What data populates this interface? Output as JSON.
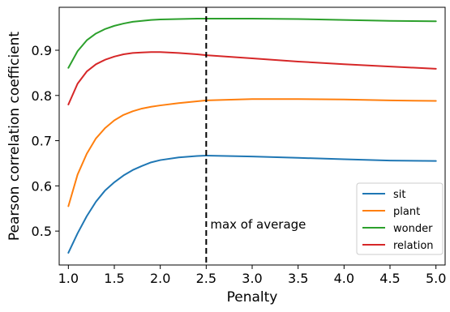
{
  "chart_data": {
    "type": "line",
    "title": "",
    "xlabel": "Penalty",
    "ylabel": "Pearson correlation coefficient",
    "xlim": [
      0.9,
      5.1
    ],
    "ylim": [
      0.425,
      0.995
    ],
    "xticks": [
      1.0,
      1.5,
      2.0,
      2.5,
      3.0,
      3.5,
      4.0,
      4.5,
      5.0
    ],
    "xtick_labels": [
      "1.0",
      "1.5",
      "2.0",
      "2.5",
      "3.0",
      "3.5",
      "4.0",
      "4.5",
      "5.0"
    ],
    "yticks": [
      0.5,
      0.6,
      0.7,
      0.8,
      0.9
    ],
    "ytick_labels": [
      "0.5",
      "0.6",
      "0.7",
      "0.8",
      "0.9"
    ],
    "grid": false,
    "legend_position": "lower-right",
    "vline": {
      "x": 2.5,
      "style": "dashed",
      "color": "#000000",
      "label": "max of average"
    },
    "x": [
      1.0,
      1.1,
      1.2,
      1.3,
      1.4,
      1.5,
      1.6,
      1.7,
      1.8,
      1.9,
      2.0,
      2.2,
      2.4,
      2.5,
      3.0,
      3.5,
      4.0,
      4.5,
      5.0
    ],
    "series": [
      {
        "name": "sit",
        "color": "#1f77b4",
        "values": [
          0.452,
          0.495,
          0.533,
          0.565,
          0.59,
          0.608,
          0.623,
          0.635,
          0.644,
          0.652,
          0.657,
          0.663,
          0.666,
          0.667,
          0.665,
          0.662,
          0.659,
          0.656,
          0.655
        ]
      },
      {
        "name": "plant",
        "color": "#ff7f0e",
        "values": [
          0.555,
          0.625,
          0.671,
          0.705,
          0.728,
          0.745,
          0.757,
          0.765,
          0.771,
          0.775,
          0.778,
          0.783,
          0.787,
          0.789,
          0.792,
          0.792,
          0.791,
          0.789,
          0.788
        ]
      },
      {
        "name": "wonder",
        "color": "#2ca02c",
        "values": [
          0.861,
          0.898,
          0.922,
          0.937,
          0.947,
          0.954,
          0.959,
          0.963,
          0.965,
          0.967,
          0.968,
          0.969,
          0.97,
          0.97,
          0.97,
          0.969,
          0.967,
          0.965,
          0.964
        ]
      },
      {
        "name": "relation",
        "color": "#d62728",
        "values": [
          0.78,
          0.826,
          0.853,
          0.869,
          0.879,
          0.886,
          0.891,
          0.894,
          0.895,
          0.896,
          0.896,
          0.894,
          0.891,
          0.889,
          0.882,
          0.875,
          0.869,
          0.864,
          0.859
        ]
      }
    ]
  }
}
